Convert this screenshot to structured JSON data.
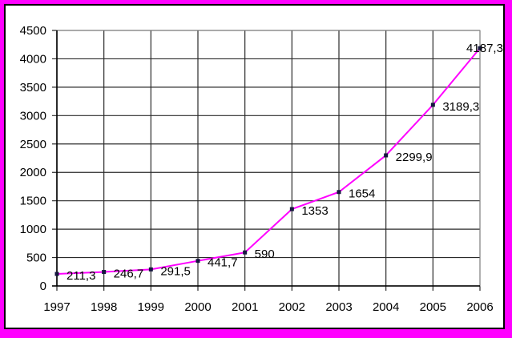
{
  "window": {
    "outer_frame_color": "#FF00FF",
    "inner_border_color": "#000000",
    "plot_background": "#FFFFFF"
  },
  "chart_data": {
    "type": "line",
    "title": "",
    "xlabel": "",
    "ylabel": "",
    "categories": [
      "1997",
      "1998",
      "1999",
      "2000",
      "2001",
      "2002",
      "2003",
      "2004",
      "2005",
      "2006"
    ],
    "values": [
      211.3,
      246.7,
      291.5,
      441.7,
      590,
      1353,
      1654,
      2299.9,
      3189.3,
      4187.3
    ],
    "point_labels": [
      "211,3",
      "246,7",
      "291,5",
      "441,7",
      "590",
      "1353",
      "1654",
      "2299,9",
      "3189,3",
      "4187,3"
    ],
    "ylim": [
      0,
      4500
    ],
    "ytick_step": 500,
    "ytick_labels": [
      "0",
      "500",
      "1000",
      "1500",
      "2000",
      "2500",
      "3000",
      "3500",
      "4000",
      "4500"
    ],
    "grid": true,
    "legend": false,
    "line_color": "#FF00FF",
    "marker_color": "#15153F",
    "marker_shape": "square",
    "gridline_color": "#2A2A2A",
    "axis_color": "#000000",
    "plot_border_color": "#8C8C8C"
  }
}
